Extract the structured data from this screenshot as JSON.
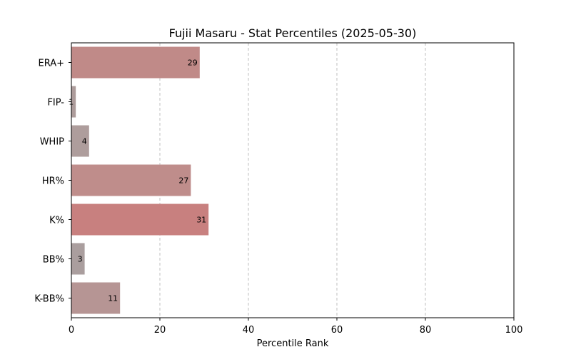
{
  "chart_data": {
    "type": "bar",
    "orientation": "horizontal",
    "title": "Fujii Masaru - Stat Percentiles (2025-05-30)",
    "xlabel": "Percentile Rank",
    "ylabel": "",
    "xlim": [
      0,
      100
    ],
    "xticks": [
      0,
      20,
      40,
      60,
      80,
      100
    ],
    "grid": "x-dashed",
    "categories": [
      "ERA+",
      "FIP-",
      "WHIP",
      "HR%",
      "K%",
      "BB%",
      "K-BB%"
    ],
    "values": [
      29,
      1,
      4,
      27,
      31,
      3,
      11
    ],
    "bar_colors": [
      "#c08a88",
      "#ad9c9b",
      "#ae9d9c",
      "#bf8d8b",
      "#c8807f",
      "#aa9e9e",
      "#b69594"
    ]
  }
}
